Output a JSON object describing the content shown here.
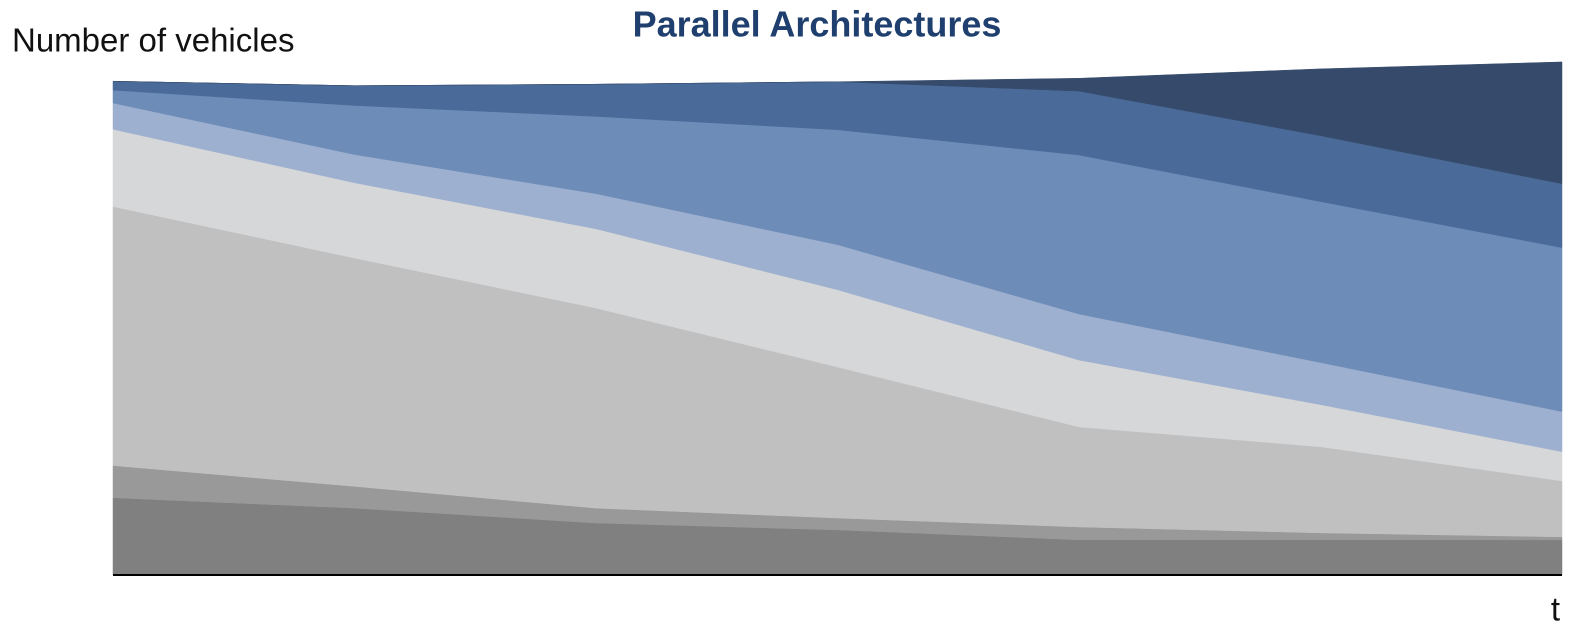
{
  "chart_data": {
    "type": "area",
    "stacked": true,
    "title": "Parallel Architectures",
    "y_label": "Number of vehicles",
    "x_label": "t",
    "categories": [
      null,
      null,
      null,
      null,
      null,
      null,
      null
    ],
    "ylim": [
      0,
      105
    ],
    "series": [
      {
        "color": "#808080",
        "values": [
          15.6,
          13.5,
          10.5,
          9.1,
          7.1,
          7.1,
          7.1
        ]
      },
      {
        "color": "#999999",
        "values": [
          6.5,
          4.4,
          3.0,
          2.4,
          2.6,
          1.4,
          0.6
        ]
      },
      {
        "color": "#c0c0c0",
        "values": [
          52.3,
          46.1,
          40.4,
          30.5,
          20.2,
          17.4,
          11.3
        ]
      },
      {
        "color": "#d6d7d9",
        "values": [
          15.6,
          15.2,
          16.0,
          15.6,
          13.5,
          8.5,
          5.9
        ]
      },
      {
        "color": "#9eb0cf",
        "values": [
          5.3,
          5.7,
          7.1,
          9.1,
          9.3,
          8.5,
          8.1
        ]
      },
      {
        "color": "#6d8cb8",
        "values": [
          2.6,
          9.9,
          15.6,
          23.2,
          32.1,
          32.5,
          33.1
        ]
      },
      {
        "color": "#4a6b9a",
        "values": [
          1.8,
          4.0,
          6.5,
          9.7,
          12.9,
          13.3,
          12.9
        ]
      },
      {
        "color": "#364b6b",
        "values": [
          0,
          0,
          0,
          0,
          2.6,
          13.5,
          24.6
        ]
      }
    ]
  }
}
